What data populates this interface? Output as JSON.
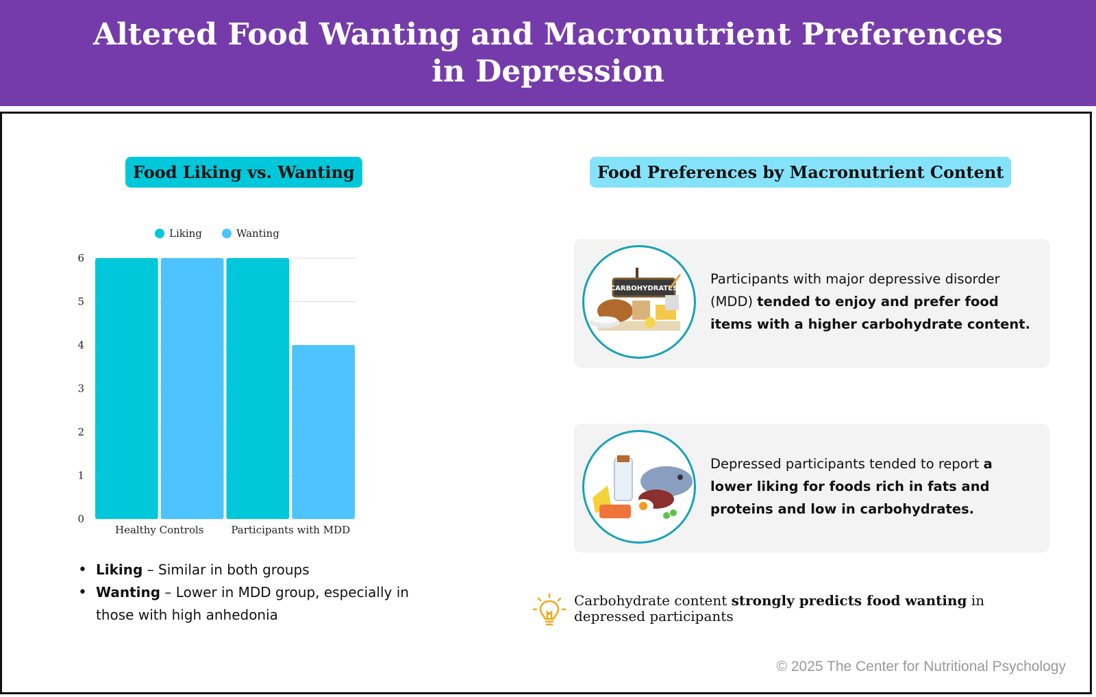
{
  "header": {
    "title_line1": "Altered Food Wanting and Macronutrient Preferences",
    "title_line2": "in Depression",
    "bg_color": "#763bab"
  },
  "left_section": {
    "heading": "Food Liking vs. Wanting"
  },
  "right_section": {
    "heading": "Food Preferences by Macronutrient Content"
  },
  "chart_data": {
    "type": "bar",
    "categories": [
      "Healthy Controls",
      "Participants with MDD"
    ],
    "series": [
      {
        "name": "Liking",
        "values": [
          6,
          6
        ],
        "color": "#00c8db"
      },
      {
        "name": "Wanting",
        "values": [
          6,
          4
        ],
        "color": "#4dc3ff"
      }
    ],
    "ylim": [
      0,
      6
    ],
    "yticks": [
      "0",
      "1",
      "2",
      "3",
      "4",
      "5",
      "6"
    ],
    "grid": true,
    "legend": "top"
  },
  "bullets": [
    {
      "term": "Liking",
      "text": " – Similar in both groups"
    },
    {
      "term": "Wanting",
      "text": " – Lower in MDD group, especially in those with high anhedonia"
    }
  ],
  "cards": [
    {
      "image_label": "CARBOHYDRATES",
      "text_plain": "Participants with major depressive disorder (MDD) ",
      "text_bold": "tended to enjoy and prefer food items with a higher carbohydrate content."
    },
    {
      "text_plain": "Depressed participants tended to report ",
      "text_bold": "a lower liking for foods rich in fats and proteins and low in carbohydrates."
    }
  ],
  "insight": {
    "icon": "lightbulb-icon",
    "text_before": "Carbohydrate content ",
    "text_bold": "strongly predicts food wanting",
    "text_after": " in depressed participants"
  },
  "footer": {
    "copyright": "© 2025 The Center for Nutritional Psychology"
  }
}
